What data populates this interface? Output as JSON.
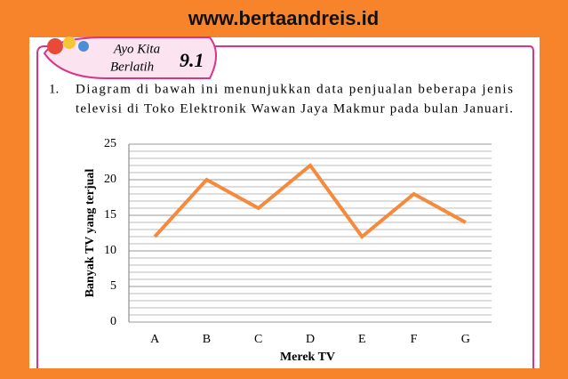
{
  "header": {
    "site": "www.bertaandreis.id"
  },
  "badge": {
    "line1": "Ayo Kita",
    "line2": "Berlatih",
    "number": "9.1"
  },
  "question": {
    "number": "1.",
    "lines": [
      "Diagram di bawah ini menunjukkan data penjualan beberapa jenis",
      "televisi di Toko Elektronik Wawan Jaya Makmur pada bulan Januari."
    ]
  },
  "chart_data": {
    "type": "line",
    "x_label": "Merek TV",
    "y_label": "Banyak TV yang terjual",
    "categories": [
      "A",
      "B",
      "C",
      "D",
      "E",
      "F",
      "G"
    ],
    "values": [
      12,
      20,
      16,
      22,
      12,
      18,
      14
    ],
    "color": "#f58a3c",
    "ylim": [
      0,
      25
    ],
    "yticks": [
      0,
      5,
      10,
      15,
      20,
      25
    ],
    "grid": true,
    "minor_grid_step": 1
  }
}
